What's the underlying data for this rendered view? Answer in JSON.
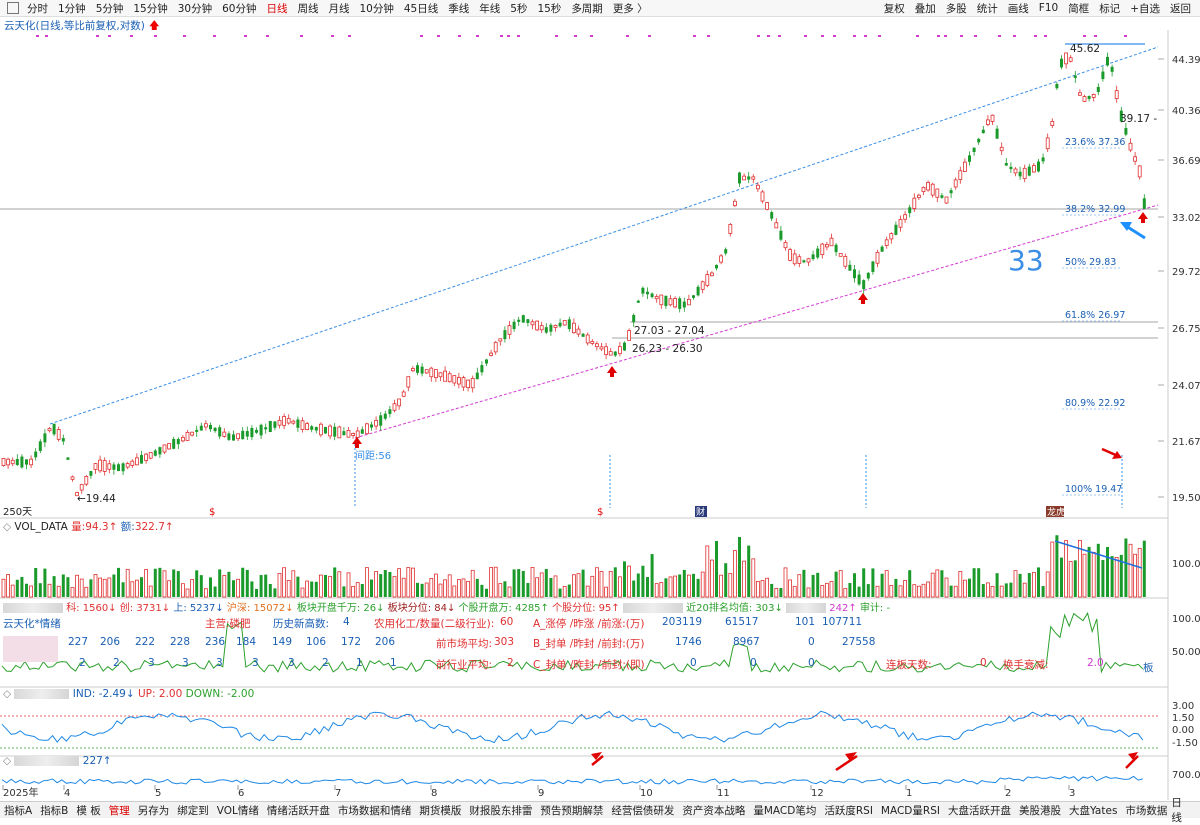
{
  "toolbar": {
    "items": [
      "分时",
      "1分钟",
      "5分钟",
      "15分钟",
      "30分钟",
      "60分钟",
      "日线",
      "周线",
      "月线",
      "10分钟",
      "45日线",
      "季线",
      "年线",
      "5秒",
      "15秒",
      "多周期",
      "更多 〉"
    ],
    "active": "日线",
    "right_items": [
      "复权",
      "叠加",
      "多股",
      "统计",
      "画线",
      "F10",
      "简框",
      "标记",
      "+自选",
      "返回"
    ]
  },
  "title": {
    "stock": "云天化(日线,等比前复权,对数)",
    "arrow": "🡅"
  },
  "main_chart": {
    "days_label": "250天",
    "y_ticks": [
      "44.39",
      "40.36",
      "36.69",
      "33.02",
      "29.72",
      "26.75",
      "24.07",
      "21.67",
      "19.50"
    ],
    "annotations": {
      "high": "45.62",
      "low": "←19.44",
      "recent": "39.17 -",
      "level_2703": "27.03 - 27.04",
      "level_2623": "26.23 - 26.30",
      "interval": "间距:56",
      "big_number": "33"
    },
    "fib_levels": [
      {
        "label": "23.6% 37.36",
        "value": 37.36
      },
      {
        "label": "38.2% 32.99",
        "value": 32.99
      },
      {
        "label": "50% 29.83",
        "value": 29.83
      },
      {
        "label": "61.8% 26.97",
        "value": 26.97
      },
      {
        "label": "80.9% 22.92",
        "value": 22.92
      },
      {
        "label": "100% 19.47",
        "value": 19.47
      }
    ],
    "markers": [
      "$",
      "$",
      "财",
      "龙虎"
    ]
  },
  "chart_data": {
    "type": "candlestick",
    "title": "云天化(日线,等比前复权,对数)",
    "y_scale": "log",
    "ylim": [
      19.5,
      46.0
    ],
    "x_month_labels": [
      "2025年",
      "4",
      "5",
      "6",
      "7",
      "8",
      "9",
      "10",
      "11",
      "12",
      "1",
      "2",
      "3"
    ],
    "key_points": [
      {
        "label": "low",
        "value": 19.44
      },
      {
        "label": "high",
        "value": 45.62
      },
      {
        "label": "current_region",
        "value": 33.0
      }
    ]
  },
  "volume_panel": {
    "name": "VOL_DATA",
    "vol_label": "量:",
    "vol_value": "94.3↑",
    "amt_label": "额:",
    "amt_value": "322.7↑",
    "y_tick": "100.0"
  },
  "info_row": {
    "items": [
      "科: 1560↓",
      "创: 3731↓",
      "上: 5237↓",
      "沪深: 15072↓",
      "板块开盘千万: 26↓",
      "板块分位: 84↓",
      "个股开盘万: 4285↑",
      "个股分位: 95↑",
      "近20排名均值: 303↓",
      "242↑",
      "审计: -"
    ]
  },
  "sentiment_panel": {
    "name": "云天化*情绪",
    "main_label": "主营:磷肥",
    "row1": [
      "227",
      "206",
      "222",
      "228",
      "236",
      "184",
      "149",
      "106",
      "172",
      "206"
    ],
    "row2": [
      "2",
      "2",
      "3",
      "3",
      "3",
      "3",
      "3",
      "2",
      "1",
      "1"
    ],
    "hist_label": "历史新高数:",
    "hist_value": "4",
    "industry_label": "农用化工/数量(二级行业):",
    "industry_value": "60",
    "prev_market_label": "前市场平均:",
    "prev_market_value": "303",
    "prev_industry_label": "前行业平均:",
    "prev_industry_value": "2",
    "a_label": "A_涨停 /昨涨 /前涨:(万)",
    "a_values": [
      "203119",
      "61517",
      "101",
      "107711"
    ],
    "b_label": "B_封单 /昨封 /前封:(万)",
    "b_values": [
      "1746",
      "8967",
      "0",
      "27558"
    ],
    "c_label": "C_封单 /昨封 /前封:(即)",
    "c_values": [
      "0",
      "0",
      "0"
    ],
    "streak_label": "连板天数:",
    "streak_value": "0",
    "decay_label": "换手衰减:",
    "decay_value": "2.0",
    "side_label": "板",
    "y_ticks": [
      "100.0",
      "50.00"
    ]
  },
  "ind_panel": {
    "ind_label": "IND:",
    "ind_value": "-2.49↓",
    "up_label": "UP:",
    "up_value": "2.00",
    "down_label": "DOWN:",
    "down_value": "-2.00",
    "y_ticks": [
      "3.00",
      "1.50",
      "0.00",
      "-1.50"
    ]
  },
  "bottom_panel": {
    "value": "227↑",
    "y_tick": "700.0"
  },
  "bottom_bar": {
    "items": [
      "指标A",
      "指标B",
      "模 板",
      "管理",
      "另存为",
      "绑定到",
      "VOL情绪",
      "情绪活跃开盘",
      "市场数据和情绪",
      "期货模版",
      "财报股东排雷",
      "预告预期解禁",
      "经营偿债研发",
      "资产资本战略",
      "量MACD笔均",
      "活跃度RSI",
      "MACD量RSI",
      "大盘活跃开盘",
      "美股港股",
      "大盘Yates",
      "市场数据"
    ],
    "active": "管理",
    "right": "日线"
  },
  "colors": {
    "up": "#e03030",
    "down": "#1a9a2a",
    "blue_line": "#3a8ee6",
    "magenta_line": "#d23ad2",
    "accent_red": "#e00000"
  }
}
